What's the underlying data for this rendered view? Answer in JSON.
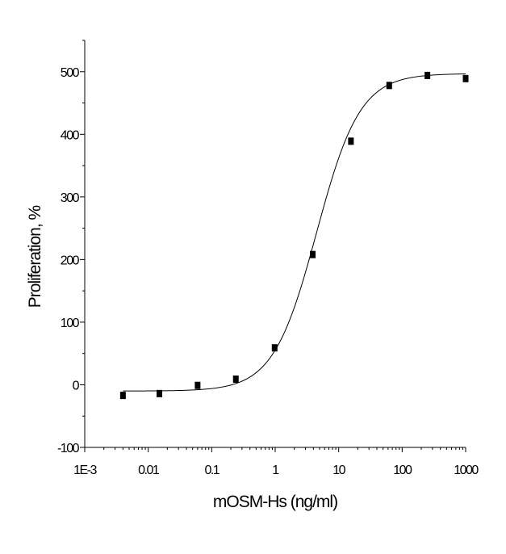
{
  "chart_data": {
    "type": "scatter",
    "x_scale": "log",
    "xlabel": "mOSM-Hs (ng/ml)",
    "ylabel": "Proliferation, %",
    "xlim": [
      0.001,
      1000
    ],
    "ylim": [
      -100,
      550
    ],
    "x_tick_labels": [
      "1E-3",
      "0.01",
      "0.1",
      "1",
      "10",
      "100",
      "1000"
    ],
    "y_tick_labels": [
      "-100",
      "0",
      "100",
      "200",
      "300",
      "400",
      "500"
    ],
    "points": [
      {
        "x": 0.004,
        "y": -17
      },
      {
        "x": 0.015,
        "y": -14
      },
      {
        "x": 0.06,
        "y": -1
      },
      {
        "x": 0.24,
        "y": 9
      },
      {
        "x": 0.98,
        "y": 59
      },
      {
        "x": 3.9,
        "y": 208
      },
      {
        "x": 15.6,
        "y": 389
      },
      {
        "x": 62.5,
        "y": 478
      },
      {
        "x": 250,
        "y": 494
      },
      {
        "x": 1000,
        "y": 489
      }
    ],
    "fit": {
      "model": "4PL",
      "bottom": -10,
      "top": 497,
      "ec50": 4.5,
      "hill": 1.27
    },
    "grid": false,
    "legend": "none"
  }
}
